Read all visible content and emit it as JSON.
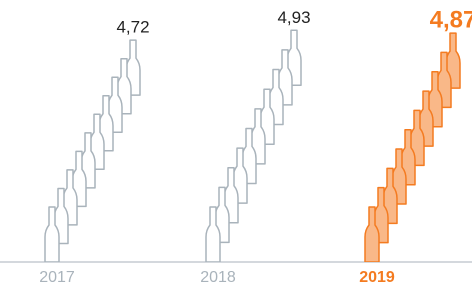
{
  "chart_data": {
    "type": "pictograph",
    "categories": [
      "2017",
      "2018",
      "2019"
    ],
    "values": [
      4.72,
      4.93,
      4.87
    ],
    "value_labels": [
      "4,72",
      "4,93",
      "4,87"
    ],
    "colors": [
      "#a9b3bb",
      "#a9b3bb",
      "#f47b20"
    ],
    "highlight": 2,
    "ylim": [
      0,
      5
    ]
  }
}
